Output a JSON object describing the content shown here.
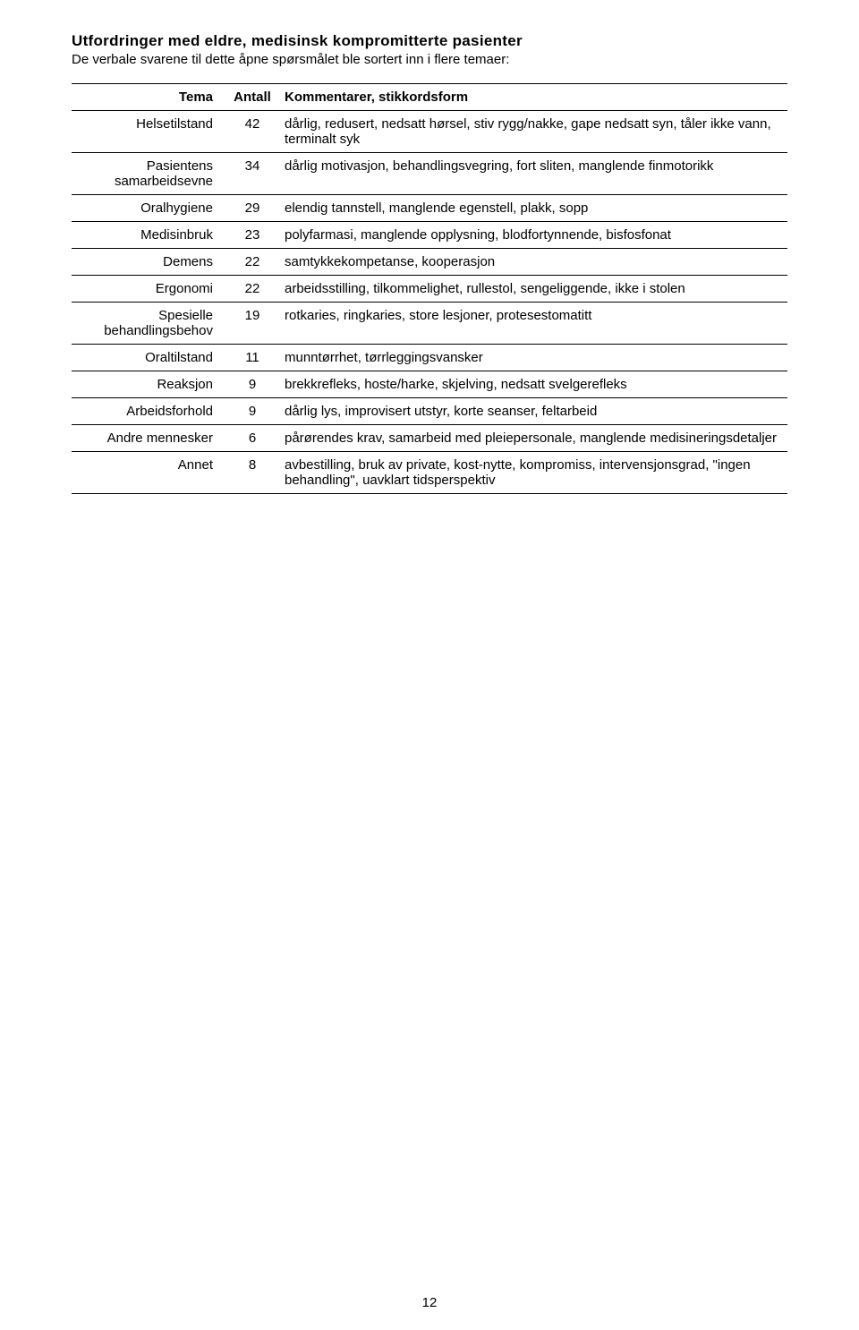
{
  "title": "Utfordringer med eldre, medisinsk kompromitterte pasienter",
  "intro": "De verbale svarene til dette åpne spørsmålet ble sortert inn i flere temaer:",
  "page_number": "12",
  "columns": {
    "tema": "Tema",
    "antall": "Antall",
    "kommentarer": "Kommentarer, stikkordsform"
  },
  "rows": [
    {
      "tema": "Helsetilstand",
      "antall": "42",
      "komm": "dårlig, redusert, nedsatt hørsel, stiv rygg/nakke, gape nedsatt syn, tåler ikke vann, terminalt syk"
    },
    {
      "tema": "Pasientens samarbeidsevne",
      "antall": "34",
      "komm": "dårlig motivasjon, behandlingsvegring, fort sliten, manglende finmotorikk"
    },
    {
      "tema": "Oralhygiene",
      "antall": "29",
      "komm": "elendig tannstell, manglende egenstell, plakk, sopp"
    },
    {
      "tema": "Medisinbruk",
      "antall": "23",
      "komm": "polyfarmasi, manglende opplysning, blodfortynnende, bisfosfonat"
    },
    {
      "tema": "Demens",
      "antall": "22",
      "komm": "samtykkekompetanse, kooperasjon"
    },
    {
      "tema": "Ergonomi",
      "antall": "22",
      "komm": "arbeidsstilling, tilkommelighet, rullestol, sengeliggende, ikke i stolen"
    },
    {
      "tema": "Spesielle behandlingsbehov",
      "antall": "19",
      "komm": "rotkaries, ringkaries, store lesjoner, protesestomatitt"
    },
    {
      "tema": "Oraltilstand",
      "antall": "11",
      "komm": "munntørrhet, tørrleggingsvansker"
    },
    {
      "tema": "Reaksjon",
      "antall": "9",
      "komm": "brekkrefleks, hoste/harke, skjelving, nedsatt svelgerefleks"
    },
    {
      "tema": "Arbeidsforhold",
      "antall": "9",
      "komm": "dårlig lys, improvisert utstyr, korte seanser, feltarbeid"
    },
    {
      "tema": "Andre mennesker",
      "antall": "6",
      "komm": "pårørendes krav, samarbeid med pleiepersonale, manglende medisineringsdetaljer"
    },
    {
      "tema": "Annet",
      "antall": "8",
      "komm": "avbestilling, bruk av private, kost-nytte, kompromiss, intervensjonsgrad, \"ingen behandling\", uavklart tidsperspektiv"
    }
  ]
}
